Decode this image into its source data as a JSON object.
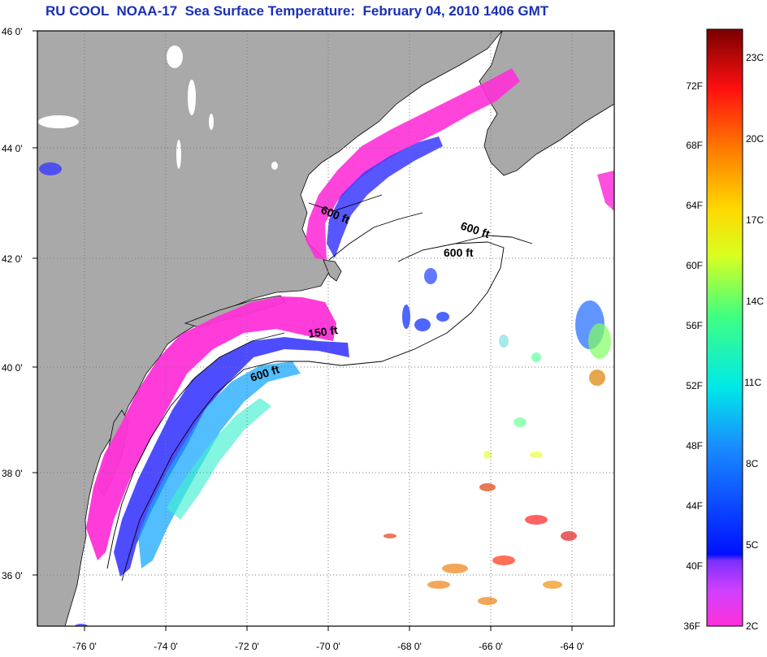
{
  "title": "RU COOL  NOAA-17  Sea Surface Temperature:  February 04, 2010 1406 GMT",
  "latitude_labels": [
    "46 0'",
    "44 0'",
    "42 0'",
    "40 0'",
    "38 0'",
    "36 0'"
  ],
  "longitude_labels": [
    "-76 0'",
    "-74 0'",
    "-72 0'",
    "-70 0'",
    "-68 0'",
    "-66 0'",
    "-64 0'"
  ],
  "contour_labels": [
    "600 ft",
    "600 ft",
    "600 ft",
    "150 ft",
    "600 ft"
  ],
  "colorbar": {
    "fahrenheit_labels": [
      "72F",
      "68F",
      "64F",
      "60F",
      "56F",
      "52F",
      "48F",
      "44F",
      "40F",
      "36F"
    ],
    "celsius_labels": [
      "23C",
      "20C",
      "17C",
      "14C",
      "11C",
      "8C",
      "5C",
      "2C"
    ]
  },
  "colors": {
    "land": "#a9a9a9",
    "title": "#1a2fb5",
    "ocean_unmeasured": "#ffffff",
    "grid": "#777777"
  }
}
